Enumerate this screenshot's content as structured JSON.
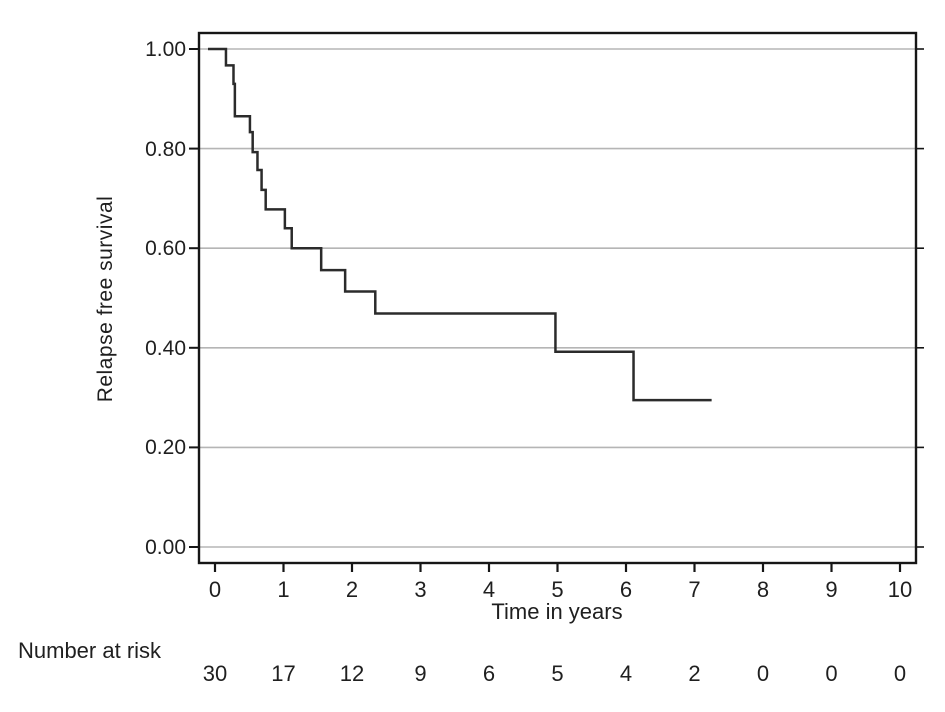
{
  "figure": {
    "ylabel": "Relapse free survival",
    "xlabel": "Time in years",
    "risk_label": "Number at risk"
  },
  "chart_data": {
    "type": "line",
    "variant": "kaplan_meier_step_function",
    "title": "",
    "xlabel": "Time in years",
    "ylabel": "Relapse free survival",
    "xlim": [
      0,
      10
    ],
    "ylim": [
      0.0,
      1.0
    ],
    "x_ticks": [
      0,
      1,
      2,
      3,
      4,
      5,
      6,
      7,
      8,
      9,
      10
    ],
    "y_ticks": [
      1.0,
      0.8,
      0.6,
      0.4,
      0.2,
      0.0
    ],
    "y_tick_labels": [
      "1.00",
      "0.80",
      "0.60",
      "0.40",
      "0.20",
      "0.00"
    ],
    "grid": "horizontal gridlines on",
    "legend": "none",
    "series": [
      {
        "name": "Relapse free survival",
        "color": "#2b2b2b",
        "steps": [
          {
            "t": 0.0,
            "s": 1.0
          },
          {
            "t": 0.16,
            "s": 0.967
          },
          {
            "t": 0.27,
            "s": 0.93
          },
          {
            "t": 0.29,
            "s": 0.865
          },
          {
            "t": 0.51,
            "s": 0.833
          },
          {
            "t": 0.55,
            "s": 0.793
          },
          {
            "t": 0.62,
            "s": 0.757
          },
          {
            "t": 0.68,
            "s": 0.717
          },
          {
            "t": 0.74,
            "s": 0.678
          },
          {
            "t": 1.02,
            "s": 0.64
          },
          {
            "t": 1.12,
            "s": 0.6
          },
          {
            "t": 1.55,
            "s": 0.556
          },
          {
            "t": 1.9,
            "s": 0.513
          },
          {
            "t": 2.34,
            "s": 0.469
          },
          {
            "t": 4.97,
            "s": 0.392
          },
          {
            "t": 6.11,
            "s": 0.295
          }
        ],
        "end_time": 7.25
      }
    ],
    "number_at_risk": {
      "times": [
        0,
        1,
        2,
        3,
        4,
        5,
        6,
        7,
        8,
        9,
        10
      ],
      "counts": [
        30,
        17,
        12,
        9,
        6,
        5,
        4,
        2,
        0,
        0,
        0
      ]
    },
    "colors": {
      "curve": "#2b2b2b",
      "grid": "#b5b5b5",
      "border": "#161616",
      "text": "#1f1f1f"
    }
  }
}
